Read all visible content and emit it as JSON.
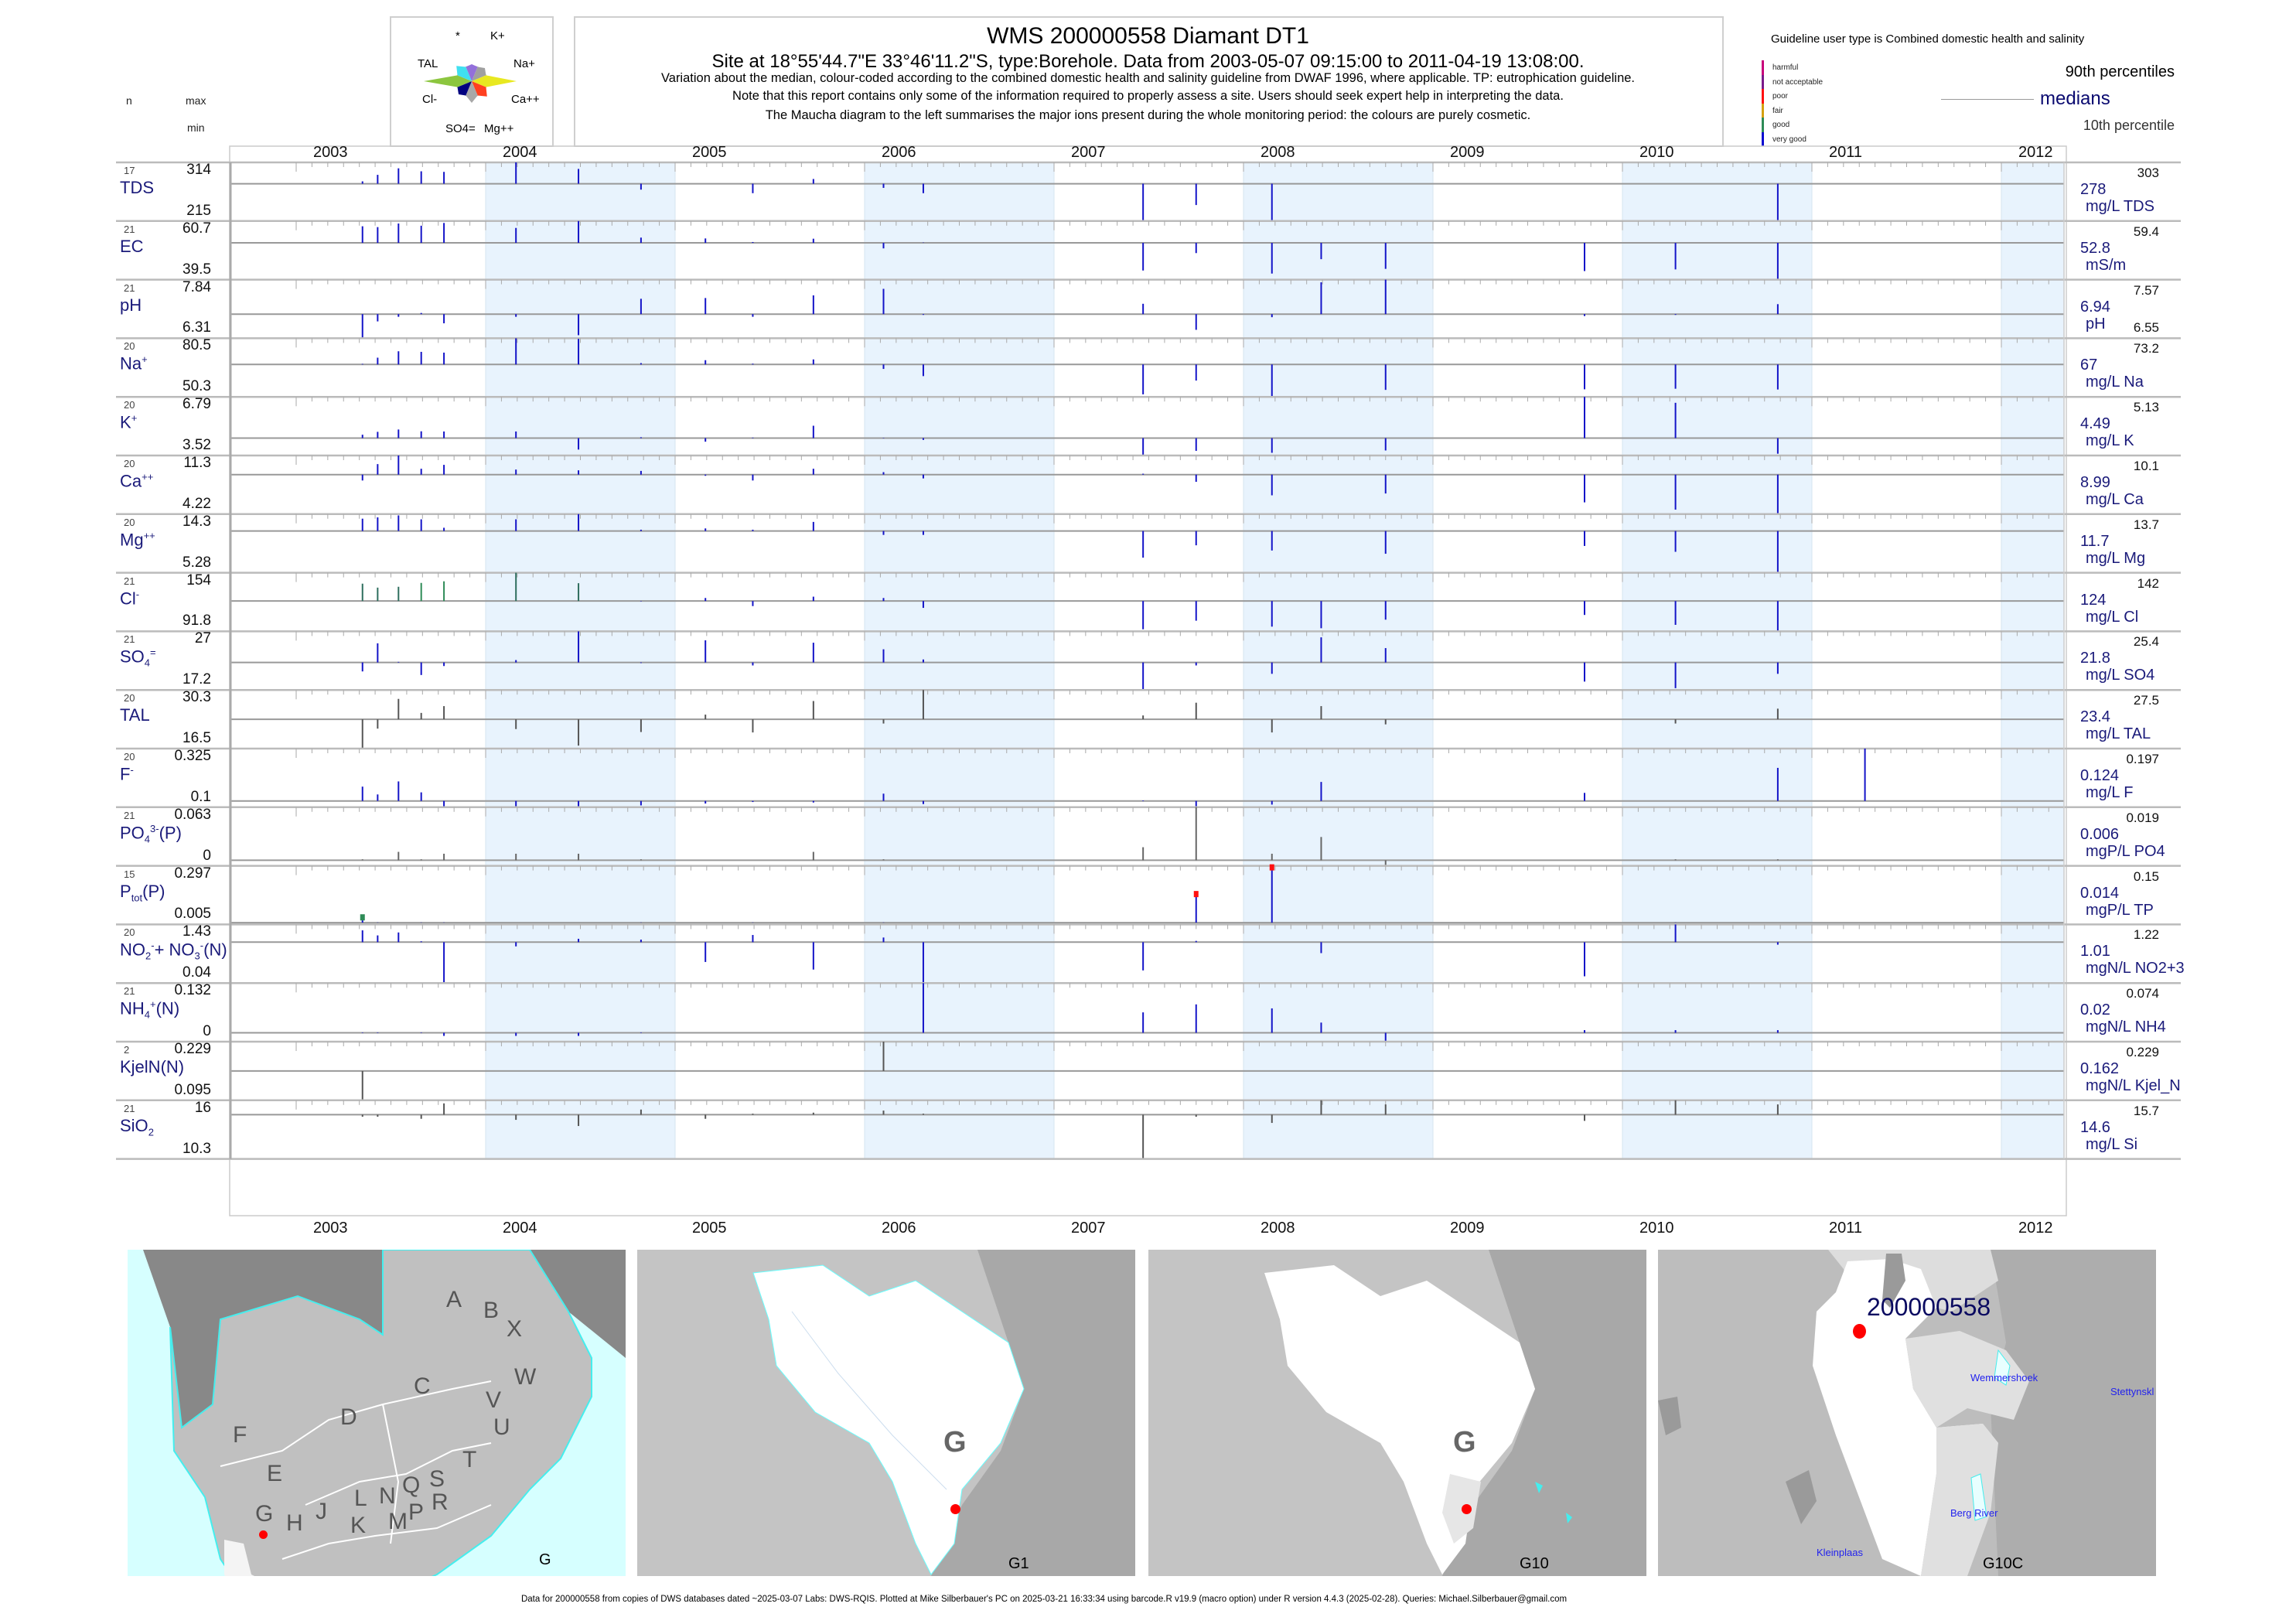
{
  "header": {
    "title": "WMS 200000558  Diamant DT1",
    "subtitle": "Site at 18°55'44.7\"E 33°46'11.2\"S, type:Borehole.  Data from 2003-05-07 09:15:00 to 2011-04-19 13:08:00.",
    "lines": [
      "Variation about the median,  colour-coded according to the combined domestic health and salinity guideline from DWAF 1996, where applicable. TP: eutrophication guideline.",
      "Note that this report contains only some of the information required to properly assess a site. Users should seek expert help in interpreting the data.",
      "The Maucha diagram to the left summarises the major ions present during the whole monitoring period: the colours are purely cosmetic."
    ],
    "col_n": "n",
    "col_max": "max",
    "col_min": "min"
  },
  "maucha": {
    "labels": [
      "*",
      "K+",
      "Na+",
      "Ca++",
      "Mg++",
      "SO4=",
      "Cl-",
      "TAL"
    ],
    "colors": [
      "#9370db",
      "#a0a0a0",
      "#e8e820",
      "#ff4020",
      "#a8a8a8",
      "#000080",
      "#8cc63f",
      "#40e0f0"
    ]
  },
  "legend": {
    "title": "Guideline user type is Combined domestic health and salinity",
    "categories": [
      {
        "label": "harmful",
        "color": "#c8007a"
      },
      {
        "label": "not acceptable",
        "color": "#7a1a8a"
      },
      {
        "label": "poor",
        "color": "#ff1010"
      },
      {
        "label": "fair",
        "color": "#d4a010"
      },
      {
        "label": "good",
        "color": "#2e8b57"
      },
      {
        "label": "very good",
        "color": "#0a0ad0"
      }
    ],
    "p90": "90th percentiles",
    "medians": "medians",
    "p10": "10th percentile"
  },
  "chart_data": {
    "type": "bar",
    "title": "Variation about the median",
    "x_years": [
      "2003",
      "2004",
      "2005",
      "2006",
      "2007",
      "2008",
      "2009",
      "2010",
      "2011",
      "2012"
    ],
    "xlim": [
      2003,
      2012.37
    ],
    "dates": [
      2003.35,
      2003.43,
      2003.54,
      2003.66,
      2003.78,
      2004.16,
      2004.49,
      2004.82,
      2005.16,
      2005.41,
      2005.73,
      2006.1,
      2006.31,
      2007.47,
      2007.75,
      2008.15,
      2008.41,
      2008.75,
      2009.8,
      2010.28,
      2010.82,
      2011.28
    ],
    "series": [
      {
        "name": "TDS",
        "label": [
          [
            "t",
            "TDS"
          ]
        ],
        "n": "17",
        "max": "314",
        "min": "215",
        "median": "278",
        "unit": "mg/L TDS",
        "p90": "303",
        "p10": "",
        "ylim": [
          215,
          314
        ],
        "values": [
          282,
          293,
          304,
          299,
          298,
          314,
          303,
          268,
          278,
          262,
          286,
          271,
          262,
          215,
          242,
          215,
          null,
          null,
          null,
          null,
          215,
          null
        ]
      },
      {
        "name": "EC",
        "label": [
          [
            "t",
            "EC"
          ]
        ],
        "n": "21",
        "max": "60.7",
        "min": "39.5",
        "median": "52.8",
        "unit": "mS/m",
        "p90": "59.4",
        "p10": "",
        "ylim": [
          39.5,
          60.7
        ],
        "values": [
          58.8,
          58.5,
          59.8,
          59.0,
          60.0,
          58.2,
          60.7,
          54.7,
          54.4,
          53.1,
          54.3,
          50.8,
          52.9,
          42.8,
          49.1,
          41.7,
          46.9,
          43.4,
          42.6,
          43.2,
          39.5,
          null
        ]
      },
      {
        "name": "pH",
        "label": [
          [
            "t",
            "pH"
          ]
        ],
        "n": "21",
        "max": "7.84",
        "min": "6.31",
        "median": "6.94",
        "unit": "pH",
        "p90": "7.57",
        "p10": "6.55",
        "ylim": [
          6.31,
          7.84
        ],
        "values": [
          6.31,
          6.75,
          6.87,
          6.97,
          6.7,
          6.87,
          6.39,
          7.34,
          7.36,
          6.87,
          7.43,
          7.6,
          6.92,
          7.21,
          6.53,
          6.86,
          7.77,
          7.84,
          6.89,
          6.92,
          7.2,
          null
        ]
      },
      {
        "name": "Na",
        "label": [
          [
            "t",
            "Na"
          ],
          [
            "sup",
            "+"
          ]
        ],
        "n": "20",
        "max": "80.5",
        "min": "50.3",
        "median": "67",
        "unit": "mg/L Na",
        "p90": "73.2",
        "p10": "",
        "ylim": [
          50.3,
          80.5
        ],
        "values": [
          67.3,
          70.5,
          73.8,
          73.5,
          73.1,
          80.5,
          80.2,
          67.7,
          69.2,
          67.4,
          69.6,
          64.7,
          61.0,
          51.6,
          58.7,
          50.3,
          null,
          53.9,
          54.2,
          54.5,
          54.1,
          null
        ]
      },
      {
        "name": "K",
        "label": [
          [
            "t",
            "K"
          ],
          [
            "sup",
            "+"
          ]
        ],
        "n": "20",
        "max": "6.79",
        "min": "3.52",
        "median": "4.49",
        "unit": "mg/L K",
        "p90": "5.13",
        "p10": "",
        "ylim": [
          3.52,
          6.79
        ],
        "values": [
          4.68,
          4.84,
          4.97,
          4.87,
          4.86,
          4.86,
          3.85,
          4.54,
          4.29,
          4.52,
          5.18,
          4.51,
          4.39,
          3.52,
          3.78,
          3.67,
          null,
          3.8,
          6.79,
          6.46,
          3.62,
          null
        ]
      },
      {
        "name": "Ca",
        "label": [
          [
            "t",
            "Ca"
          ],
          [
            "sup",
            "++"
          ]
        ],
        "n": "20",
        "max": "11.3",
        "min": "4.22",
        "median": "8.99",
        "unit": "mg/L Ca",
        "p90": "10.1",
        "p10": "",
        "ylim": [
          4.22,
          11.3
        ],
        "values": [
          8.28,
          10.26,
          11.3,
          9.7,
          10.17,
          9.6,
          9.51,
          9.44,
          8.85,
          8.28,
          9.7,
          9.29,
          8.53,
          9.1,
          8.12,
          6.49,
          null,
          6.71,
          5.64,
          4.76,
          4.22,
          null
        ]
      },
      {
        "name": "Mg",
        "label": [
          [
            "t",
            "Mg"
          ],
          [
            "sup",
            "++"
          ]
        ],
        "n": "20",
        "max": "14.3",
        "min": "5.28",
        "median": "11.7",
        "unit": "mg/L Mg",
        "p90": "13.7",
        "p10": "",
        "ylim": [
          5.28,
          14.3
        ],
        "values": [
          13.6,
          13.8,
          14.1,
          13.5,
          12.2,
          13.5,
          14.3,
          11.9,
          12.1,
          11.9,
          13.1,
          11.1,
          11.1,
          7.6,
          9.5,
          8.7,
          null,
          8.2,
          9.4,
          8.5,
          5.28,
          null
        ]
      },
      {
        "name": "Cl",
        "label": [
          [
            "t",
            "Cl"
          ],
          [
            "sup",
            "-"
          ]
        ],
        "n": "21",
        "max": "154",
        "min": "91.8",
        "median": "124",
        "unit": "mg/L Cl",
        "p90": "142",
        "p10": "",
        "ylim": [
          91.8,
          154
        ],
        "values": [
          142.4,
          138.2,
          139.1,
          143.2,
          144.9,
          154,
          142.9,
          123.6,
          127.2,
          118.6,
          128.6,
          127.2,
          116.7,
          94.0,
          103.1,
          96.8,
          95.1,
          104.2,
          109.2,
          98.7,
          91.8,
          null
        ],
        "point_colors": [
          "#2e6e5e",
          "#2e6e5e",
          "#2e6e5e",
          "#2e8b57",
          "#2e8b57",
          "#2e6e5e",
          "#2e6e5e"
        ]
      },
      {
        "name": "SO4",
        "label": [
          [
            "t",
            "SO"
          ],
          [
            "sub",
            "4"
          ],
          [
            "sup",
            "="
          ]
        ],
        "n": "21",
        "max": "27",
        "min": "17.2",
        "median": "21.8",
        "unit": "mg/L SO4",
        "p90": "25.4",
        "p10": "",
        "ylim": [
          17.2,
          27
        ],
        "values": [
          20.3,
          25.0,
          21.9,
          19.7,
          21.2,
          22.2,
          27.0,
          21.7,
          25.5,
          21.3,
          25.1,
          24.0,
          22.3,
          17.2,
          21.3,
          19.9,
          26.0,
          24.2,
          18.6,
          17.5,
          19.9,
          null
        ]
      },
      {
        "name": "TAL",
        "label": [
          [
            "t",
            "TAL"
          ]
        ],
        "n": "20",
        "max": "30.3",
        "min": "16.5",
        "median": "23.4",
        "unit": "mg/L TAL",
        "p90": "27.5",
        "p10": "",
        "ylim": [
          16.5,
          30.3
        ],
        "color": "#555555",
        "values": [
          16.5,
          21.2,
          28.2,
          24.9,
          26.5,
          21.1,
          17.2,
          20.4,
          24.5,
          20.3,
          27.7,
          22.4,
          30.3,
          24.3,
          27.3,
          20.3,
          26.5,
          22.2,
          null,
          22.4,
          25.9,
          null
        ]
      },
      {
        "name": "F",
        "label": [
          [
            "t",
            "F"
          ],
          [
            "sup",
            "-"
          ]
        ],
        "n": "20",
        "max": "0.325",
        "min": "0.1",
        "median": "0.124",
        "unit": "mg/L F",
        "p90": "0.197",
        "p10": "",
        "ylim": [
          0.1,
          0.325
        ],
        "values": [
          0.179,
          0.149,
          0.199,
          0.157,
          0.1,
          0.1,
          0.1,
          0.107,
          0.114,
          0.12,
          0.118,
          0.152,
          0.112,
          0.126,
          0.1,
          0.11,
          0.197,
          null,
          0.155,
          null,
          0.251,
          0.325
        ]
      },
      {
        "name": "PO4",
        "label": [
          [
            "t",
            "PO"
          ],
          [
            "sub",
            "4"
          ],
          [
            "sup",
            "3-"
          ],
          [
            "t",
            "(P)"
          ]
        ],
        "n": "21",
        "max": "0.063",
        "min": "0",
        "median": "0.006",
        "unit": "mgP/L PO4",
        "p90": "0.019",
        "p10": "",
        "ylim": [
          0,
          0.063
        ],
        "color": "#666666",
        "values": [
          0.007,
          0.006,
          0.015,
          0.007,
          0.013,
          0.013,
          0.013,
          0.007,
          0.006,
          0.006,
          0.015,
          0.007,
          0.006,
          0.02,
          0.063,
          0.013,
          0.031,
          0.001,
          0.006,
          0.007,
          0.007,
          null
        ]
      },
      {
        "name": "TP",
        "label": [
          [
            "t",
            "P"
          ],
          [
            "sub",
            "tot"
          ],
          [
            "t",
            "(P)"
          ]
        ],
        "n": "15",
        "max": "0.297",
        "min": "0.005",
        "median": "0.014",
        "unit": "mgP/L TP",
        "p90": "0.15",
        "p10": "",
        "ylim": [
          0.005,
          0.297
        ],
        "values": [
          0.048,
          0.015,
          0.014,
          0.015,
          0.015,
          0.014,
          0.014,
          0.015,
          0.014,
          0.015,
          null,
          0.015,
          null,
          null,
          0.164,
          0.297,
          null,
          null,
          0.014,
          0.015,
          null,
          null
        ],
        "markers": {
          "0": "#2e8b57",
          "14": "#ff1010",
          "15": "#ff1010"
        }
      },
      {
        "name": "NO2+3",
        "label": [
          [
            "t",
            "NO"
          ],
          [
            "sub",
            "2"
          ],
          [
            "sup",
            "-"
          ],
          [
            "t",
            "+ NO"
          ],
          [
            "sub",
            "3"
          ],
          [
            "sup",
            "-"
          ],
          [
            "t",
            "(N)"
          ]
        ],
        "n": "20",
        "max": "1.43",
        "min": "0.04",
        "median": "1.01",
        "unit": "mgN/L NO2+3",
        "p90": "1.22",
        "p10": "",
        "ylim": [
          0.04,
          1.43
        ],
        "values": [
          1.29,
          1.17,
          1.24,
          1.03,
          0.04,
          0.91,
          1.09,
          1.07,
          0.54,
          1.18,
          0.36,
          1.12,
          0.04,
          0.34,
          1.04,
          1.01,
          0.75,
          null,
          0.2,
          1.43,
          0.95,
          null
        ]
      },
      {
        "name": "NH4",
        "label": [
          [
            "t",
            "NH"
          ],
          [
            "sub",
            "4"
          ],
          [
            "sup",
            "+"
          ],
          [
            "t",
            "(N)"
          ]
        ],
        "n": "21",
        "max": "0.132",
        "min": "0",
        "median": "0.02",
        "unit": "mgN/L NH4",
        "p90": "0.074",
        "p10": "",
        "ylim": [
          0,
          0.132
        ],
        "values": [
          0.021,
          0.021,
          0.02,
          0.021,
          0.013,
          0.013,
          0.013,
          0.021,
          0.02,
          0.02,
          0.02,
          0.02,
          0.132,
          0.066,
          0.084,
          0.075,
          0.043,
          0,
          0.026,
          0.026,
          0.026,
          null
        ]
      },
      {
        "name": "Kjel_N",
        "label": [
          [
            "t",
            "KjelN(N)"
          ]
        ],
        "n": "2",
        "max": "0.229",
        "min": "0.095",
        "median": "0.162",
        "unit": "mgN/L Kjel_N",
        "p90": "0.229",
        "p10": "",
        "ylim": [
          0.095,
          0.229
        ],
        "color": "#555555",
        "values": [
          0.095,
          null,
          null,
          null,
          null,
          null,
          null,
          null,
          null,
          null,
          null,
          0.229,
          null,
          null,
          null,
          null,
          null,
          null,
          null,
          null,
          null,
          null
        ]
      },
      {
        "name": "SiO2",
        "label": [
          [
            "t",
            "SiO"
          ],
          [
            "sub",
            "2"
          ]
        ],
        "n": "21",
        "max": "16",
        "min": "10.3",
        "median": "14.6",
        "unit": "mg/L Si",
        "p90": "15.7",
        "p10": "",
        "ylim": [
          10.3,
          16
        ],
        "color": "#555555",
        "values": [
          14.4,
          14.4,
          14.6,
          14.2,
          15.7,
          14.1,
          13.5,
          15.1,
          14.2,
          14.7,
          14.8,
          15.0,
          14.7,
          10.3,
          14.4,
          13.8,
          16.0,
          15.6,
          14.0,
          16.0,
          15.6,
          null
        ]
      }
    ],
    "shaded_years": [
      "2004",
      "2006",
      "2008",
      "2010",
      "2012"
    ]
  },
  "maps": {
    "m1": {
      "letters": [
        "A",
        "B",
        "X",
        "C",
        "W",
        "D",
        "V",
        "U",
        "F",
        "T",
        "E",
        "S",
        "Q",
        "L",
        "N",
        "R",
        "G",
        "P",
        "J",
        "H",
        "K",
        "M"
      ],
      "caption": "G"
    },
    "m2": {
      "region": "G",
      "caption": "G1"
    },
    "m3": {
      "region": "G",
      "caption": "G10"
    },
    "m4": {
      "site": "200000558",
      "places": [
        "Wemmershoek",
        "Stettynskl",
        "Berg River",
        "Kleinplaas"
      ],
      "caption": "G10C"
    }
  },
  "footer": "Data for 200000558 from copies of DWS databases dated ~2025-03-07 Labs: DWS-RQIS. Plotted at Mike Silberbauer's PC on 2025-03-21 16:33:34 using barcode.R v19.9 (macro option) under R version 4.4.3 (2025-02-28). Queries: Michael.Silberbauer@gmail.com"
}
